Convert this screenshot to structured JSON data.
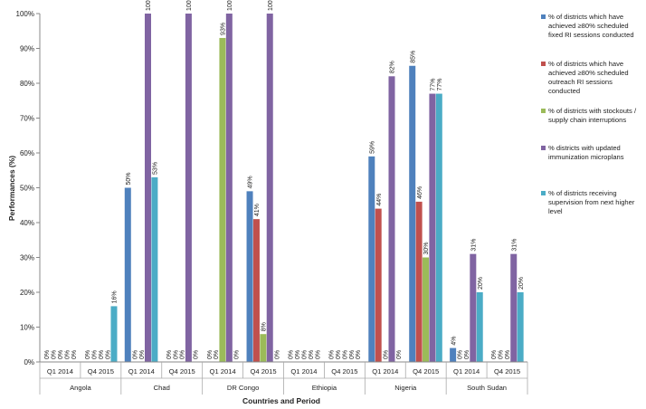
{
  "chart_data": {
    "type": "bar",
    "ylabel": "Performances (%)",
    "xlabel": "Countries and Period",
    "ylim": [
      0,
      100
    ],
    "yticks": [
      0,
      10,
      20,
      30,
      40,
      50,
      60,
      70,
      80,
      90,
      100
    ],
    "ytick_labels": [
      "0%",
      "10%",
      "20%",
      "30%",
      "40%",
      "50%",
      "60%",
      "70%",
      "80%",
      "90%",
      "100%"
    ],
    "grid": false,
    "legend_position": "right",
    "countries": [
      {
        "name": "Angola",
        "periods": [
          "Q1 2014",
          "Q4 2015"
        ]
      },
      {
        "name": "Chad",
        "periods": [
          "Q1 2014",
          "Q4 2015"
        ]
      },
      {
        "name": "DR Congo",
        "periods": [
          "Q1 2014",
          "Q4 2015"
        ]
      },
      {
        "name": "Ethiopia",
        "periods": [
          "Q1 2014",
          "Q4 2015"
        ]
      },
      {
        "name": "Nigeria",
        "periods": [
          "Q1 2014",
          "Q4 2015"
        ]
      },
      {
        "name": "South Sudan",
        "periods": [
          "Q1 2014",
          "Q4 2015"
        ]
      }
    ],
    "categories": [
      "Angola Q1 2014",
      "Angola Q4 2015",
      "Chad Q1 2014",
      "Chad Q4 2015",
      "DR Congo Q1 2014",
      "DR Congo Q4 2015",
      "Ethiopia Q1 2014",
      "Ethiopia Q4 2015",
      "Nigeria Q1 2014",
      "Nigeria Q4 2015",
      "South Sudan Q1 2014",
      "South Sudan Q4 2015"
    ],
    "series": [
      {
        "name": "% of districts which have achieved ≥80% scheduled fixed RI sessions conducted",
        "color": "#4F81BD",
        "values": [
          0,
          0,
          50,
          0,
          0,
          49,
          0,
          0,
          59,
          85,
          4,
          0
        ],
        "labels": [
          "0%",
          "0%",
          "50%",
          "0%",
          "0%",
          "49%",
          "0%",
          "0%",
          "59%",
          "85%",
          "4%",
          "0%"
        ]
      },
      {
        "name": "% of districts which have achieved ≥80% scheduled outreach RI sessions conducted",
        "color": "#C0504D",
        "values": [
          0,
          0,
          0,
          0,
          0,
          41,
          0,
          0,
          44,
          46,
          0,
          0
        ],
        "labels": [
          "0%",
          "0%",
          "0%",
          "0%",
          "0%",
          "41%",
          "0%",
          "0%",
          "44%",
          "46%",
          "0%",
          "0%"
        ]
      },
      {
        "name": "% of districts with stockouts / supply chain interruptions",
        "color": "#9BBB59",
        "values": [
          0,
          0,
          0,
          0,
          93,
          8,
          0,
          0,
          0,
          30,
          0,
          0
        ],
        "labels": [
          "0%",
          "0%",
          "0%",
          "0%",
          "93%",
          "8%",
          "0%",
          "0%",
          "0%",
          "30%",
          "0%",
          "0%"
        ]
      },
      {
        "name": "% districts with updated immunization microplans",
        "color": "#8064A2",
        "values": [
          0,
          0,
          100,
          100,
          100,
          100,
          0,
          0,
          82,
          77,
          31,
          31
        ],
        "labels": [
          "0%",
          "0%",
          "100%",
          "100%",
          "100%",
          "100%",
          "0%",
          "0%",
          "82%",
          "77%",
          "31%",
          "31%"
        ]
      },
      {
        "name": "% of districts receiving supervision from next higher level",
        "color": "#4BACC6",
        "values": [
          0,
          16,
          53,
          0,
          0,
          0,
          0,
          0,
          0,
          77,
          20,
          20
        ],
        "labels": [
          "0%",
          "16%",
          "53%",
          "0%",
          "0%",
          "0%",
          "0%",
          "0%",
          "0%",
          "77%",
          "20%",
          "20%"
        ]
      }
    ]
  }
}
